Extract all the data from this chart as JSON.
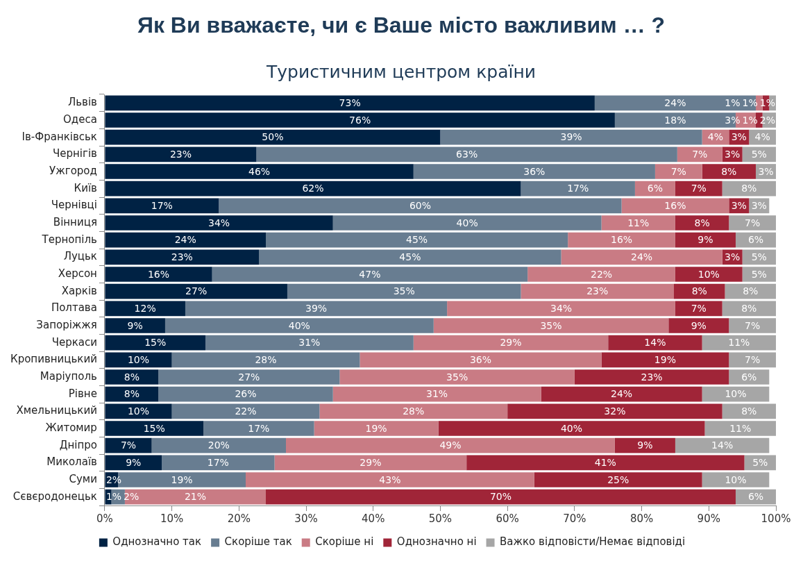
{
  "chart_data": {
    "type": "bar",
    "orientation": "horizontal",
    "stacked": true,
    "title": "Як Ви вважаєте, чи є Ваше місто важливим … ?",
    "subtitle": "Туристичним центром країни",
    "categories": [
      "Львів",
      "Одеса",
      "Ів-Франківськ",
      "Чернігів",
      "Ужгород",
      "Київ",
      "Чернівці",
      "Вінниця",
      "Тернопіль",
      "Луцьк",
      "Херсон",
      "Харків",
      "Полтава",
      "Запоріжжя",
      "Черкаси",
      "Кропивницький",
      "Маріуполь",
      "Рівне",
      "Хмельницький",
      "Житомир",
      "Дніпро",
      "Миколаїв",
      "Суми",
      "Сєвєродонецьк"
    ],
    "series": [
      {
        "name": "Однозначно так",
        "color": "#002244",
        "values": [
          73,
          76,
          50,
          22.6,
          46,
          62,
          17,
          34,
          24,
          23,
          16,
          27.2,
          12,
          9,
          15,
          10,
          8,
          8,
          10,
          14.7,
          7,
          8.5,
          2,
          1
        ],
        "value_labels": [
          "73%",
          "76%",
          "50%",
          "23%",
          "46%",
          "62%",
          "17%",
          "34%",
          "24%",
          "23%",
          "16%",
          "27%",
          "12%",
          "9%",
          "15%",
          "10%",
          "8%",
          "8%",
          "10%",
          "15%",
          "7%",
          "9%",
          "2%",
          "1%"
        ]
      },
      {
        "name": "Скоріше так",
        "color": "#687d91",
        "values": [
          24,
          18,
          39,
          62.7,
          36,
          17,
          60,
          40,
          45,
          45,
          47,
          34.8,
          39,
          40,
          31,
          28,
          27,
          26,
          22,
          16.5,
          20,
          16.8,
          19,
          2
        ],
        "value_labels": [
          "24%",
          "18%",
          "39%",
          "63%",
          "36%",
          "17%",
          "60%",
          "40%",
          "45%",
          "45%",
          "47%",
          "35%",
          "39%",
          "40%",
          "31%",
          "28%",
          "27%",
          "26%",
          "22%",
          "17%",
          "20%",
          "17%",
          "19%",
          "2%"
        ]
      },
      {
        "name": "Скоріше ні",
        "color": "#c97b84",
        "values": [
          1,
          3,
          4,
          6.7,
          7,
          6,
          16,
          11,
          16,
          24,
          22,
          22.8,
          34,
          35,
          29,
          36,
          35,
          31,
          28,
          18.5,
          49,
          28.6,
          43,
          21
        ],
        "value_labels": [
          "1%",
          "3%",
          "4%",
          "7%",
          "7%",
          "6%",
          "16%",
          "11%",
          "16%",
          "24%",
          "22%",
          "23%",
          "34%",
          "35%",
          "29%",
          "36%",
          "35%",
          "31%",
          "28%",
          "19%",
          "49%",
          "29%",
          "43%",
          "21%"
        ]
      },
      {
        "name": "Однозначно ні",
        "color": "#a02538",
        "values": [
          1,
          1,
          3,
          3,
          8,
          7,
          3,
          8,
          9,
          3,
          10,
          7.6,
          7,
          9,
          14,
          19,
          23,
          24,
          32,
          39.7,
          9,
          41.4,
          25,
          70
        ],
        "value_labels": [
          "1%",
          "1%",
          "3%",
          "3%",
          "8%",
          "7%",
          "3%",
          "8%",
          "9%",
          "3%",
          "10%",
          "8%",
          "7%",
          "9%",
          "14%",
          "19%",
          "23%",
          "24%",
          "32%",
          "40%",
          "9%",
          "41%",
          "25%",
          "70%"
        ]
      },
      {
        "name": "Важко відповісти/Немає відповіді",
        "color": "#a6a6a6",
        "values": [
          1,
          2,
          4,
          5,
          3,
          8,
          3,
          7,
          6,
          5,
          5,
          7.6,
          8,
          7,
          11,
          7,
          6,
          10,
          8,
          10.6,
          14,
          4.7,
          10,
          6
        ],
        "value_labels": [
          "1%",
          "2%",
          "4%",
          "5%",
          "3%",
          "8%",
          "3%",
          "7%",
          "6%",
          "5%",
          "5%",
          "8%",
          "8%",
          "7%",
          "11%",
          "7%",
          "6%",
          "10%",
          "8%",
          "11%",
          "14%",
          "5%",
          "10%",
          "6%"
        ]
      }
    ],
    "xlim": [
      0,
      100
    ],
    "xticks": [
      {
        "value": 0,
        "label": "0%"
      },
      {
        "value": 10,
        "label": "10%"
      },
      {
        "value": 20,
        "label": "20%"
      },
      {
        "value": 30,
        "label": "30%"
      },
      {
        "value": 40,
        "label": "40%"
      },
      {
        "value": 50,
        "label": "50%"
      },
      {
        "value": 60,
        "label": "60%"
      },
      {
        "value": 70,
        "label": "70%"
      },
      {
        "value": 80,
        "label": "80%"
      },
      {
        "value": 90,
        "label": "90%"
      },
      {
        "value": 100,
        "label": "100%"
      }
    ],
    "legend": "bottom",
    "grid": false
  }
}
